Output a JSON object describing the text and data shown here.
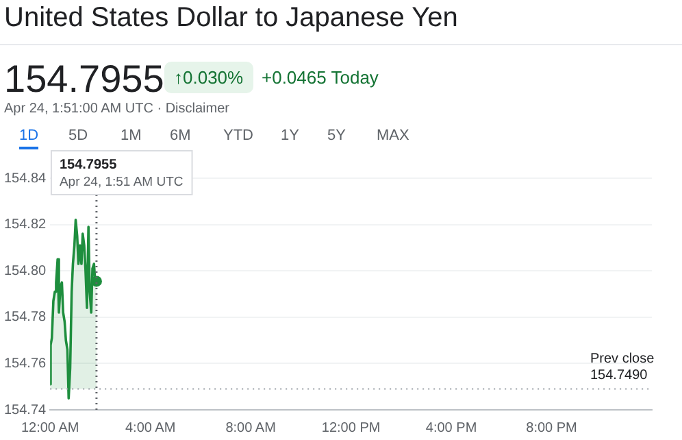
{
  "chart_data": {
    "type": "area",
    "title": "United States Dollar to Japanese Yen",
    "subtitle": "154.7955",
    "annotations": [
      "↑0.030%",
      "+0.0465 Today",
      "Apr 24, 1:51:00 AM UTC · Disclaimer",
      "1D",
      "5D",
      "1M",
      "6M",
      "YTD",
      "1Y",
      "5Y",
      "MAX",
      "154.7955",
      "Apr 24, 1:51 AM UTC"
    ],
    "x": [
      0,
      0.02,
      0.07,
      0.13,
      0.19,
      0.24,
      0.3,
      0.35,
      0.41,
      0.47,
      0.52,
      0.58,
      0.63,
      0.69,
      0.74,
      0.8,
      0.86,
      0.91,
      0.97,
      1.02,
      1.08,
      1.13,
      1.19,
      1.25,
      1.3,
      1.36,
      1.41,
      1.47,
      1.53,
      1.58,
      1.64,
      1.69,
      1.75,
      1.8,
      1.85
    ],
    "series": [
      {
        "color": "#1e8e3e",
        "values": [
          154.751,
          154.768,
          154.771,
          154.787,
          154.791,
          154.795,
          154.805,
          154.782,
          154.793,
          154.795,
          154.782,
          154.778,
          154.77,
          154.766,
          154.745,
          154.758,
          154.791,
          154.803,
          154.811,
          154.822,
          154.815,
          154.803,
          154.811,
          154.803,
          154.816,
          154.811,
          154.801,
          154.784,
          154.819,
          154.791,
          154.782,
          154.801,
          154.803,
          154.795,
          154.7955
        ]
      }
    ],
    "xlim": [
      0,
      24
    ],
    "xticks": [
      {
        "value": 0,
        "label": "12:00 AM"
      },
      {
        "value": 4,
        "label": "4:00 AM"
      },
      {
        "value": 8,
        "label": "8:00 AM"
      },
      {
        "value": 12,
        "label": "12:00 PM"
      },
      {
        "value": 16,
        "label": "4:00 PM"
      },
      {
        "value": 20,
        "label": "8:00 PM"
      }
    ],
    "ylim": [
      154.74,
      154.84
    ],
    "yticks": [
      154.74,
      154.76,
      154.78,
      {
        "value": 154.8,
        "label": "154.80"
      },
      154.82,
      154.84
    ],
    "grid": "y",
    "legend": false,
    "ref_lines": [
      {
        "axis": "y",
        "value": 154.749,
        "label": "Prev close 154.7490",
        "line_style": "dotted",
        "color": "#9aa0a6"
      },
      {
        "axis": "x",
        "value": 1.85,
        "line_style": "dotted",
        "color": "#5f6368"
      }
    ]
  }
}
